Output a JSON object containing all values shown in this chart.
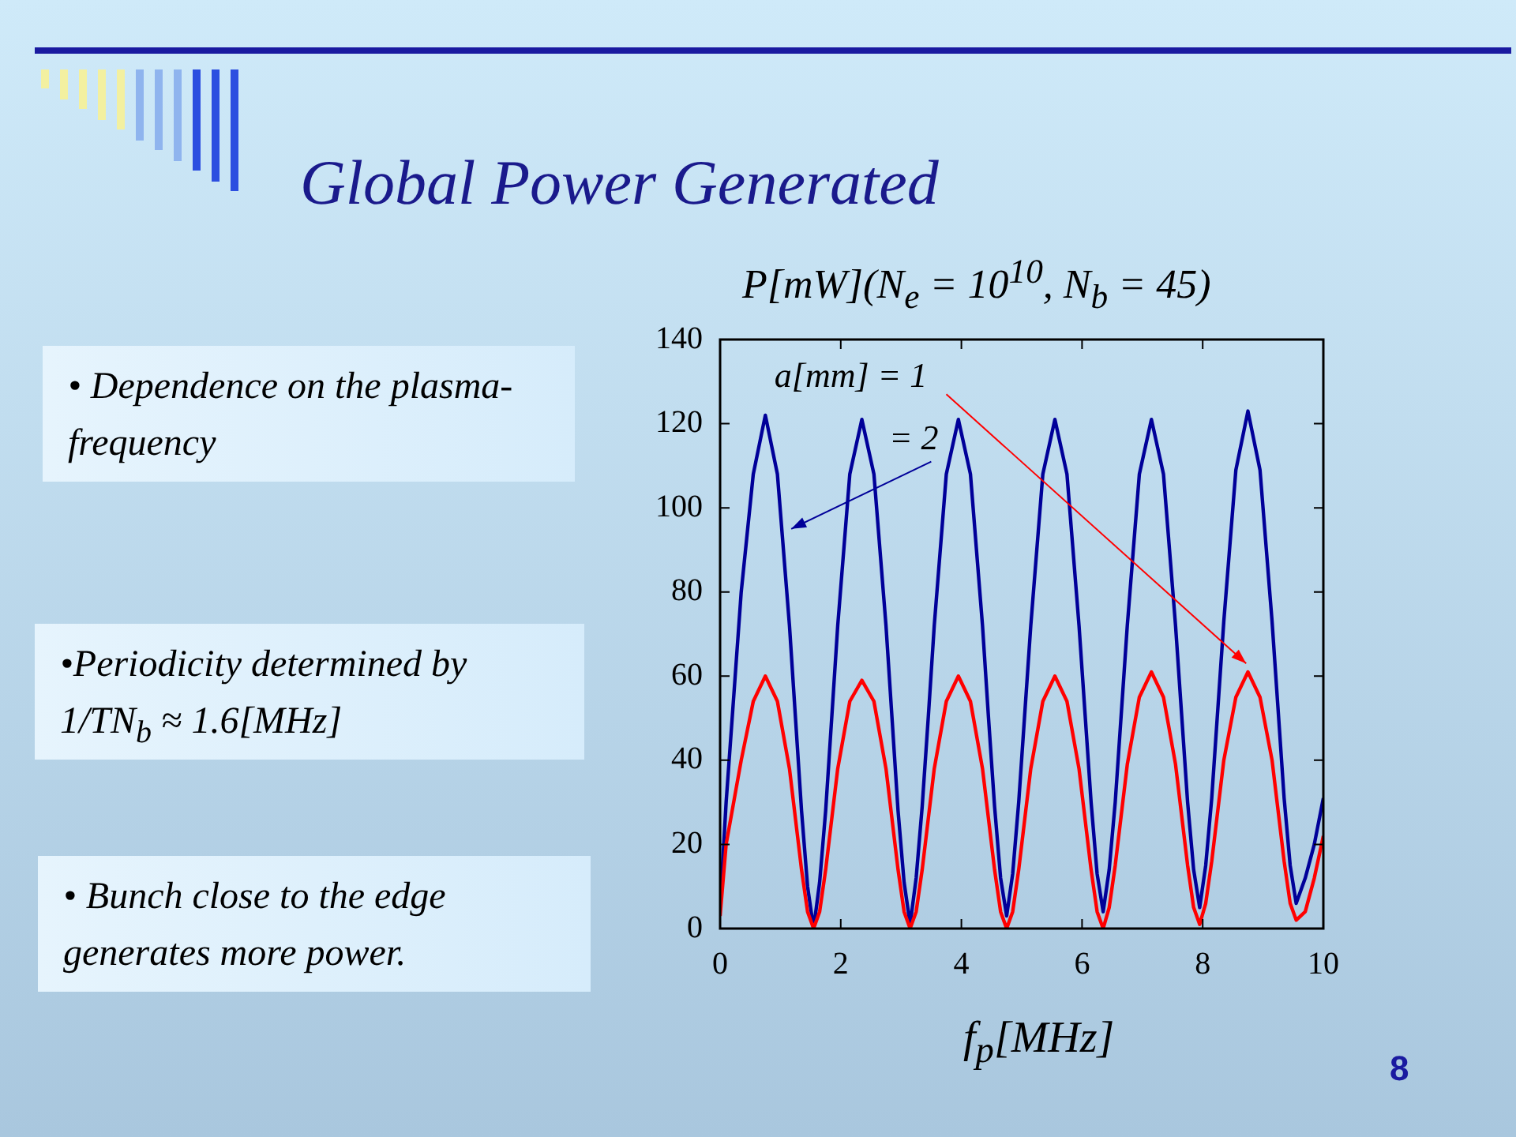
{
  "chart_data": {
    "type": "line",
    "title": "Global Power Generated",
    "ylabel": "P[mW](N$_{e}$ = 10$^{10}$, N$_{b}$ = 45)",
    "xlabel": "f$_{p}$[MHz]",
    "annotations": [
      "• Dependence on the plasma-frequency",
      "•Periodicity determined by 1/TN$_{b}$ ≈ 1.6[MHz]",
      "• Bunch close to the edge generates more power.",
      "8"
    ],
    "x": [
      0,
      0.1,
      0.25,
      0.35,
      0.55,
      0.75,
      0.95,
      1.15,
      1.25,
      1.35,
      1.45,
      1.55,
      1.65,
      1.75,
      1.85,
      1.95,
      2.15,
      2.35,
      2.55,
      2.75,
      2.85,
      2.95,
      3.05,
      3.15,
      3.25,
      3.35,
      3.45,
      3.55,
      3.75,
      3.95,
      4.15,
      4.35,
      4.45,
      4.55,
      4.65,
      4.75,
      4.85,
      4.95,
      5.05,
      5.15,
      5.35,
      5.55,
      5.75,
      5.95,
      6.05,
      6.15,
      6.25,
      6.35,
      6.45,
      6.55,
      6.65,
      6.75,
      6.95,
      7.15,
      7.35,
      7.55,
      7.65,
      7.75,
      7.85,
      7.95,
      8.05,
      8.15,
      8.25,
      8.35,
      8.55,
      8.75,
      8.95,
      9.15,
      9.25,
      9.35,
      9.45,
      9.55,
      9.7,
      9.85,
      10
    ],
    "series": [
      {
        "name": "a[mm] = 1",
        "color": "#ff0000",
        "values": [
          3,
          20,
          32,
          40,
          54,
          60,
          54,
          38,
          26,
          14,
          4,
          0,
          4,
          14,
          26,
          38,
          54,
          59,
          54,
          38,
          26,
          14,
          4,
          0,
          4,
          14,
          26,
          38,
          54,
          60,
          54,
          38,
          26,
          14,
          4,
          0,
          4,
          14,
          26,
          38,
          54,
          60,
          54,
          38,
          26,
          14,
          4,
          0,
          5,
          15,
          27,
          39,
          55,
          61,
          55,
          39,
          27,
          15,
          5,
          1,
          6,
          16,
          28,
          40,
          55,
          61,
          55,
          40,
          28,
          16,
          6,
          2,
          4,
          12,
          22
        ]
      },
      {
        "name": "= 2",
        "color": "#000099",
        "values": [
          5,
          30,
          60,
          80,
          108,
          122,
          108,
          72,
          50,
          28,
          10,
          0,
          11,
          28,
          50,
          72,
          108,
          121,
          108,
          72,
          50,
          28,
          11,
          1,
          12,
          29,
          50,
          72,
          108,
          121,
          108,
          72,
          50,
          29,
          12,
          3,
          13,
          30,
          51,
          72,
          108,
          121,
          108,
          72,
          51,
          30,
          13,
          4,
          14,
          30,
          51,
          72,
          108,
          121,
          108,
          72,
          51,
          30,
          14,
          5,
          15,
          31,
          52,
          73,
          109,
          123,
          109,
          73,
          52,
          31,
          15,
          6,
          12,
          20,
          31
        ]
      }
    ],
    "xlim": [
      0,
      10
    ],
    "ylim": [
      0,
      140
    ],
    "xticks": [
      0,
      2,
      4,
      6,
      8,
      10
    ],
    "yticks": [
      0,
      20,
      40,
      60,
      80,
      100,
      120,
      140
    ]
  }
}
